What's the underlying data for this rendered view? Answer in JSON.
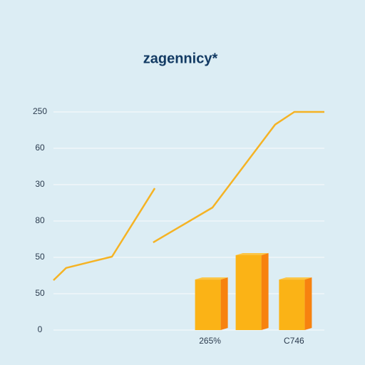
{
  "chart_data": {
    "type": "line",
    "title": "zagennicy*",
    "ylim": [
      0,
      6
    ],
    "xlim": [
      0,
      100
    ],
    "yticks": [
      {
        "value": 0,
        "label": "0"
      },
      {
        "value": 1,
        "label": "50"
      },
      {
        "value": 2,
        "label": "50"
      },
      {
        "value": 3,
        "label": "80"
      },
      {
        "value": 4,
        "label": "30"
      },
      {
        "value": 5,
        "label": "60"
      },
      {
        "value": 6,
        "label": "250"
      }
    ],
    "grid": true,
    "series": [
      {
        "type": "line",
        "color": "#f5b324",
        "x": [
          0,
          4.7,
          21.6,
          37.4,
          null,
          36.8,
          58.7,
          81.8,
          88.9,
          100
        ],
        "values": [
          1.37,
          1.71,
          2.02,
          3.9,
          null,
          2.41,
          3.37,
          5.65,
          6.0,
          6.0
        ]
      },
      {
        "type": "bar",
        "color": "#fbb316",
        "side_color": "#f7820f",
        "x": [
          57,
          72,
          88
        ],
        "categories": [
          "265%",
          null,
          "C746"
        ],
        "values": [
          1.39,
          2.06,
          1.39
        ]
      }
    ]
  }
}
